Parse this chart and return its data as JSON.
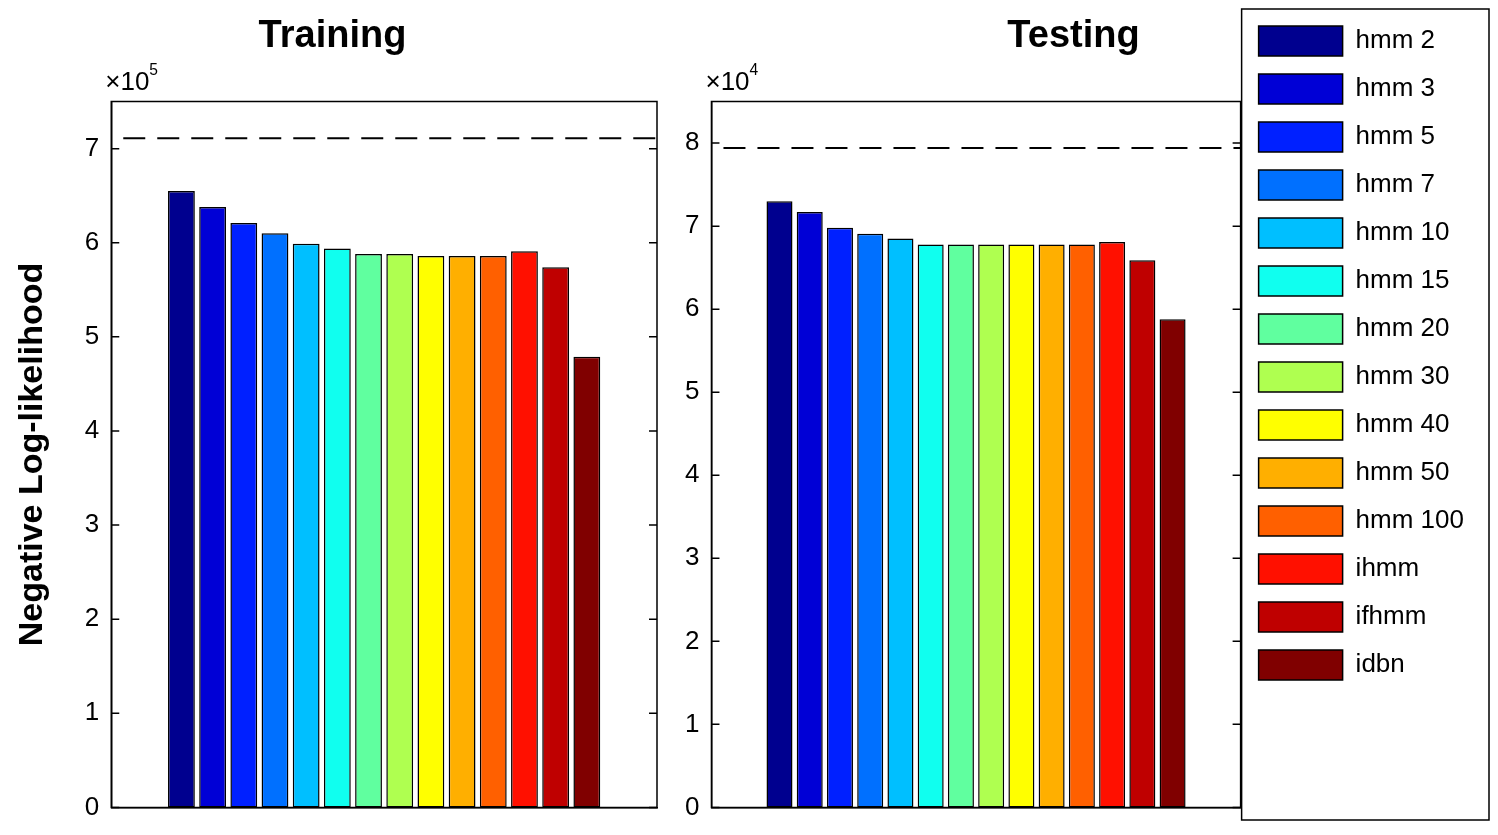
{
  "chart_data": [
    {
      "type": "bar",
      "title": "Training",
      "ylabel": "Negative Log-likelihood",
      "annotations": [
        "×10$^{5}$"
      ],
      "categories": [
        null
      ],
      "ylim": [
        0,
        7.5
      ],
      "yticks": [
        0,
        1,
        2,
        3,
        4,
        5,
        6,
        7
      ],
      "grid": false,
      "legend": false,
      "tick_labels": "y",
      "ref_lines": [
        {
          "axis": "y",
          "value": 7.11,
          "color": "#000000",
          "line_style": "dashed"
        }
      ],
      "series": [
        {
          "color": "#00008f",
          "values": [
            6.55
          ]
        },
        {
          "color": "#0000d6",
          "values": [
            6.38
          ]
        },
        {
          "color": "#0020ff",
          "values": [
            6.21
          ]
        },
        {
          "color": "#0070ff",
          "values": [
            6.1
          ]
        },
        {
          "color": "#00bfff",
          "values": [
            5.99
          ]
        },
        {
          "color": "#10ffef",
          "values": [
            5.94
          ]
        },
        {
          "color": "#60ff9f",
          "values": [
            5.88
          ]
        },
        {
          "color": "#afff50",
          "values": [
            5.88
          ]
        },
        {
          "color": "#ffff00",
          "values": [
            5.86
          ]
        },
        {
          "color": "#ffaf00",
          "values": [
            5.86
          ]
        },
        {
          "color": "#ff6000",
          "values": [
            5.86
          ]
        },
        {
          "color": "#ff1000",
          "values": [
            5.91
          ]
        },
        {
          "color": "#bf0000",
          "values": [
            5.74
          ]
        },
        {
          "color": "#800000",
          "values": [
            4.79
          ]
        }
      ]
    },
    {
      "type": "bar",
      "title": "Testing",
      "annotations": [
        "×10$^{4}$"
      ],
      "categories": [
        null
      ],
      "ylim": [
        0,
        8.5
      ],
      "yticks": [
        0,
        1,
        2,
        3,
        4,
        5,
        6,
        7,
        8
      ],
      "grid": false,
      "legend": "right",
      "tick_labels": "y",
      "ref_lines": [
        {
          "axis": "y",
          "value": 7.94,
          "color": "#000000",
          "line_style": "dashed"
        }
      ],
      "series": [
        {
          "name": "hmm 2",
          "color": "#00008f",
          "values": [
            7.3
          ]
        },
        {
          "name": "hmm 3",
          "color": "#0000d6",
          "values": [
            7.17
          ]
        },
        {
          "name": "hmm 5",
          "color": "#0020ff",
          "values": [
            6.98
          ]
        },
        {
          "name": "hmm 7",
          "color": "#0070ff",
          "values": [
            6.91
          ]
        },
        {
          "name": "hmm 10",
          "color": "#00bfff",
          "values": [
            6.85
          ]
        },
        {
          "name": "hmm 15",
          "color": "#10ffef",
          "values": [
            6.78
          ]
        },
        {
          "name": "hmm 20",
          "color": "#60ff9f",
          "values": [
            6.78
          ]
        },
        {
          "name": "hmm 30",
          "color": "#afff50",
          "values": [
            6.78
          ]
        },
        {
          "name": "hmm 40",
          "color": "#ffff00",
          "values": [
            6.78
          ]
        },
        {
          "name": "hmm 50",
          "color": "#ffaf00",
          "values": [
            6.78
          ]
        },
        {
          "name": "hmm 100",
          "color": "#ff6000",
          "values": [
            6.78
          ]
        },
        {
          "name": "ihmm",
          "color": "#ff1000",
          "values": [
            6.81
          ]
        },
        {
          "name": "ifhmm",
          "color": "#bf0000",
          "values": [
            6.59
          ]
        },
        {
          "name": "idbn",
          "color": "#800000",
          "values": [
            5.88
          ]
        }
      ]
    }
  ]
}
